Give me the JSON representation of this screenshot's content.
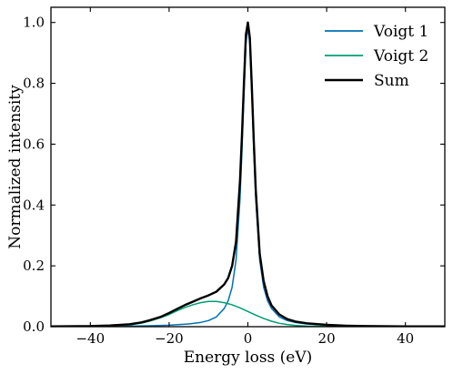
{
  "chart_data": {
    "type": "line",
    "title": "",
    "xlabel": "Energy loss (eV)",
    "ylabel": "Normalized intensity",
    "xlim": [
      -50,
      50
    ],
    "ylim": [
      0,
      1.05
    ],
    "x_ticks": [
      -40,
      -20,
      0,
      20,
      40
    ],
    "x_tick_labels": [
      "−40",
      "−20",
      "0",
      "20",
      "40"
    ],
    "y_ticks": [
      0.0,
      0.2,
      0.4,
      0.6,
      0.8,
      1.0
    ],
    "y_tick_labels": [
      "0.0",
      "0.2",
      "0.4",
      "0.6",
      "0.8",
      "1.0"
    ],
    "grid": false,
    "legend_position": "top-right",
    "series": [
      {
        "name": "Voigt 1",
        "color": "#0072b2",
        "x": [
          -50,
          -40,
          -30,
          -25,
          -20,
          -15,
          -12,
          -10,
          -8,
          -6,
          -5,
          -4,
          -3,
          -2,
          -1.5,
          -1,
          -0.5,
          0,
          0.5,
          1,
          1.5,
          2,
          3,
          4,
          5,
          6,
          8,
          10,
          12,
          15,
          20,
          25,
          30,
          40,
          50
        ],
        "values": [
          0.001,
          0.001,
          0.002,
          0.003,
          0.005,
          0.009,
          0.014,
          0.02,
          0.032,
          0.06,
          0.085,
          0.13,
          0.22,
          0.42,
          0.58,
          0.76,
          0.93,
          0.985,
          0.93,
          0.76,
          0.58,
          0.42,
          0.22,
          0.13,
          0.085,
          0.06,
          0.032,
          0.02,
          0.014,
          0.009,
          0.005,
          0.003,
          0.002,
          0.001,
          0.001
        ]
      },
      {
        "name": "Voigt 2",
        "color": "#009e73",
        "x": [
          -50,
          -45,
          -40,
          -35,
          -30,
          -27,
          -25,
          -22,
          -20,
          -18,
          -16,
          -14,
          -12,
          -10,
          -8,
          -6,
          -4,
          -2,
          0,
          2,
          4,
          6,
          8,
          10,
          12,
          15,
          20,
          25,
          30,
          40,
          50
        ],
        "values": [
          0.0,
          0.0,
          0.001,
          0.002,
          0.006,
          0.012,
          0.018,
          0.03,
          0.04,
          0.052,
          0.063,
          0.072,
          0.079,
          0.083,
          0.083,
          0.079,
          0.072,
          0.062,
          0.05,
          0.038,
          0.027,
          0.018,
          0.011,
          0.007,
          0.004,
          0.002,
          0.001,
          0.0,
          0.0,
          0.0,
          0.0
        ]
      },
      {
        "name": "Sum",
        "color": "#000000",
        "x": [
          -50,
          -40,
          -35,
          -30,
          -27,
          -25,
          -22,
          -20,
          -18,
          -16,
          -14,
          -12,
          -10,
          -8,
          -6,
          -5,
          -4,
          -3,
          -2,
          -1.5,
          -1,
          -0.5,
          0,
          0.5,
          1,
          1.5,
          2,
          3,
          4,
          5,
          6,
          8,
          10,
          12,
          15,
          20,
          25,
          30,
          40,
          50
        ],
        "values": [
          0.001,
          0.002,
          0.004,
          0.008,
          0.014,
          0.021,
          0.033,
          0.045,
          0.058,
          0.071,
          0.082,
          0.093,
          0.103,
          0.115,
          0.139,
          0.16,
          0.2,
          0.28,
          0.48,
          0.63,
          0.8,
          0.96,
          1.0,
          0.95,
          0.79,
          0.61,
          0.45,
          0.24,
          0.15,
          0.1,
          0.07,
          0.04,
          0.025,
          0.017,
          0.011,
          0.006,
          0.003,
          0.002,
          0.001,
          0.001
        ]
      }
    ]
  }
}
